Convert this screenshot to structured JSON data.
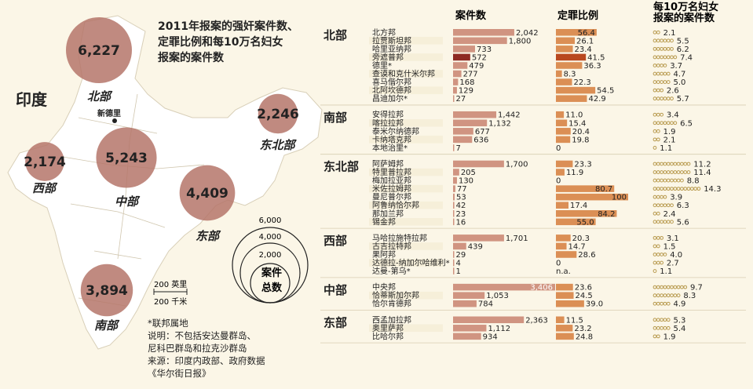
{
  "title": [
    "2011年报案的强奸案件数、",
    "定罪比例和每10万名妇女",
    "报案的案件数"
  ],
  "map": {
    "country_label": "印度",
    "capital_label": "新德里",
    "regions": [
      {
        "name": "北部",
        "total": "6,227"
      },
      {
        "name": "东北部",
        "total": "2,246"
      },
      {
        "name": "西部",
        "total": "2,174"
      },
      {
        "name": "中部",
        "total": "5,243"
      },
      {
        "name": "东部",
        "total": "4,409"
      },
      {
        "name": "南部",
        "total": "3,894"
      }
    ],
    "scale_legend": {
      "values": [
        "6,000",
        "4,000",
        "2,000"
      ],
      "label": "案件总数"
    },
    "scale_bar": {
      "miles": "200 英里",
      "km": "200 千米"
    },
    "colors": {
      "circle": "#b5766a",
      "land": "#ffffff"
    }
  },
  "notes": {
    "footnote": "*联邦属地",
    "explain": "说明：不包括安达曼群岛、",
    "explain2": "尼科巴群岛和拉克沙群岛",
    "source": "来源：印度内政部、政府数据",
    "credit": "《华尔街日报》"
  },
  "chart_data": {
    "type": "bar",
    "columns": [
      "案件数",
      "定罪比例",
      "每10万名妇女报案的案件数"
    ],
    "column_headers": [
      "案件数",
      "定罪比例",
      "每10万名妇女",
      "报案的案件数"
    ],
    "colors": {
      "bar": "#d09481",
      "bar_dark": "#8e2a23",
      "conviction": "#db8f55",
      "conviction_dark": "#b9481f",
      "icon": "#b89a4e"
    },
    "groups": [
      {
        "region": "北部",
        "states": [
          {
            "name": "北方邦",
            "cases": 2042,
            "cases_label": "2,042",
            "conviction": 56.4,
            "conviction_label": "56.4",
            "rate": 2.1,
            "rate_label": "2.1"
          },
          {
            "name": "拉贾斯坦邦",
            "cases": 1800,
            "cases_label": "1,800",
            "conviction": 26.1,
            "conviction_label": "26.1",
            "rate": 5.5,
            "rate_label": "5.5"
          },
          {
            "name": "哈里亚纳邦",
            "cases": 733,
            "cases_label": "733",
            "conviction": 23.4,
            "conviction_label": "23.4",
            "rate": 6.2,
            "rate_label": "6.2"
          },
          {
            "name": "旁遮普邦",
            "cases": 572,
            "cases_label": "572",
            "conviction": 41.5,
            "conviction_label": "41.5",
            "rate": 7.4,
            "rate_label": "7.4",
            "highlight": true
          },
          {
            "name": "德里*",
            "cases": 479,
            "cases_label": "479",
            "conviction": 36.3,
            "conviction_label": "36.3",
            "rate": 3.7,
            "rate_label": "3.7"
          },
          {
            "name": "查谟和克什米尔邦",
            "cases": 277,
            "cases_label": "277",
            "conviction": 8.3,
            "conviction_label": "8.3",
            "rate": 4.7,
            "rate_label": "4.7"
          },
          {
            "name": "喜马偕尔邦",
            "cases": 168,
            "cases_label": "168",
            "conviction": 22.3,
            "conviction_label": "22.3",
            "rate": 5.0,
            "rate_label": "5.0"
          },
          {
            "name": "北阿坎德邦",
            "cases": 129,
            "cases_label": "129",
            "conviction": 54.5,
            "conviction_label": "54.5",
            "rate": 2.6,
            "rate_label": "2.6"
          },
          {
            "name": "昌迪加尔*",
            "cases": 27,
            "cases_label": "27",
            "conviction": 42.9,
            "conviction_label": "42.9",
            "rate": 5.7,
            "rate_label": "5.7"
          }
        ]
      },
      {
        "region": "南部",
        "states": [
          {
            "name": "安得拉邦",
            "cases": 1442,
            "cases_label": "1,442",
            "conviction": 11.0,
            "conviction_label": "11.0",
            "rate": 3.4,
            "rate_label": "3.4"
          },
          {
            "name": "喀拉拉邦",
            "cases": 1132,
            "cases_label": "1,132",
            "conviction": 15.4,
            "conviction_label": "15.4",
            "rate": 6.5,
            "rate_label": "6.5"
          },
          {
            "name": "泰米尔纳德邦",
            "cases": 677,
            "cases_label": "677",
            "conviction": 20.4,
            "conviction_label": "20.4",
            "rate": 1.9,
            "rate_label": "1.9"
          },
          {
            "name": "卡纳塔克邦",
            "cases": 636,
            "cases_label": "636",
            "conviction": 19.8,
            "conviction_label": "19.8",
            "rate": 2.1,
            "rate_label": "2.1"
          },
          {
            "name": "本地治里*",
            "cases": 7,
            "cases_label": "7",
            "conviction": 0,
            "conviction_label": "0",
            "rate": 1.1,
            "rate_label": "1.1"
          }
        ]
      },
      {
        "region": "东北部",
        "states": [
          {
            "name": "阿萨姆邦",
            "cases": 1700,
            "cases_label": "1,700",
            "conviction": 23.3,
            "conviction_label": "23.3",
            "rate": 11.2,
            "rate_label": "11.2"
          },
          {
            "name": "特里普拉邦",
            "cases": 205,
            "cases_label": "205",
            "conviction": 11.9,
            "conviction_label": "11.9",
            "rate": 11.4,
            "rate_label": "11.4"
          },
          {
            "name": "梅加拉亚邦",
            "cases": 130,
            "cases_label": "130",
            "conviction": 0,
            "conviction_label": "0",
            "rate": 8.8,
            "rate_label": "8.8"
          },
          {
            "name": "米佐拉姆邦",
            "cases": 77,
            "cases_label": "77",
            "conviction": 80.7,
            "conviction_label": "80.7",
            "rate": 14.3,
            "rate_label": "14.3"
          },
          {
            "name": "曼尼普尔邦",
            "cases": 53,
            "cases_label": "53",
            "conviction": 100,
            "conviction_label": "100",
            "rate": 3.9,
            "rate_label": "3.9"
          },
          {
            "name": "阿鲁纳恰尔邦",
            "cases": 42,
            "cases_label": "42",
            "conviction": 17.4,
            "conviction_label": "17.4",
            "rate": 6.3,
            "rate_label": "6.3"
          },
          {
            "name": "那加兰邦",
            "cases": 23,
            "cases_label": "23",
            "conviction": 84.2,
            "conviction_label": "84.2",
            "rate": 2.4,
            "rate_label": "2.4"
          },
          {
            "name": "锡金邦",
            "cases": 16,
            "cases_label": "16",
            "conviction": 55.0,
            "conviction_label": "55.0",
            "rate": 5.6,
            "rate_label": "5.6"
          }
        ]
      },
      {
        "region": "西部",
        "states": [
          {
            "name": "马哈拉施特拉邦",
            "cases": 1701,
            "cases_label": "1,701",
            "conviction": 20.3,
            "conviction_label": "20.3",
            "rate": 3.1,
            "rate_label": "3.1"
          },
          {
            "name": "古吉拉特邦",
            "cases": 439,
            "cases_label": "439",
            "conviction": 14.7,
            "conviction_label": "14.7",
            "rate": 1.5,
            "rate_label": "1.5"
          },
          {
            "name": "果阿邦",
            "cases": 29,
            "cases_label": "29",
            "conviction": 28.6,
            "conviction_label": "28.6",
            "rate": 4.0,
            "rate_label": "4.0"
          },
          {
            "name": "达德拉-纳加尔哈维利*",
            "cases": 4,
            "cases_label": "4",
            "conviction": 0,
            "conviction_label": "0",
            "rate": 2.7,
            "rate_label": "2.7"
          },
          {
            "name": "达曼-第乌*",
            "cases": 1,
            "cases_label": "1",
            "conviction": null,
            "conviction_label": "n.a.",
            "rate": 1.1,
            "rate_label": "1.1"
          }
        ]
      },
      {
        "region": "中部",
        "states": [
          {
            "name": "中央邦",
            "cases": 3406,
            "cases_label": "3,406",
            "conviction": 23.6,
            "conviction_label": "23.6",
            "rate": 9.7,
            "rate_label": "9.7"
          },
          {
            "name": "恰蒂斯加尔邦",
            "cases": 1053,
            "cases_label": "1,053",
            "conviction": 24.5,
            "conviction_label": "24.5",
            "rate": 8.3,
            "rate_label": "8.3"
          },
          {
            "name": "恰尔肯德邦",
            "cases": 784,
            "cases_label": "784",
            "conviction": 39.0,
            "conviction_label": "39.0",
            "rate": 4.9,
            "rate_label": "4.9"
          }
        ]
      },
      {
        "region": "东部",
        "states": [
          {
            "name": "西孟加拉邦",
            "cases": 2363,
            "cases_label": "2,363",
            "conviction": 11.5,
            "conviction_label": "11.5",
            "rate": 5.3,
            "rate_label": "5.3"
          },
          {
            "name": "奥里萨邦",
            "cases": 1112,
            "cases_label": "1,112",
            "conviction": 23.2,
            "conviction_label": "23.2",
            "rate": 5.4,
            "rate_label": "5.4"
          },
          {
            "name": "比哈尔邦",
            "cases": 934,
            "cases_label": "934",
            "conviction": 24.8,
            "conviction_label": "24.8",
            "rate": 1.9,
            "rate_label": "1.9"
          }
        ]
      }
    ]
  }
}
